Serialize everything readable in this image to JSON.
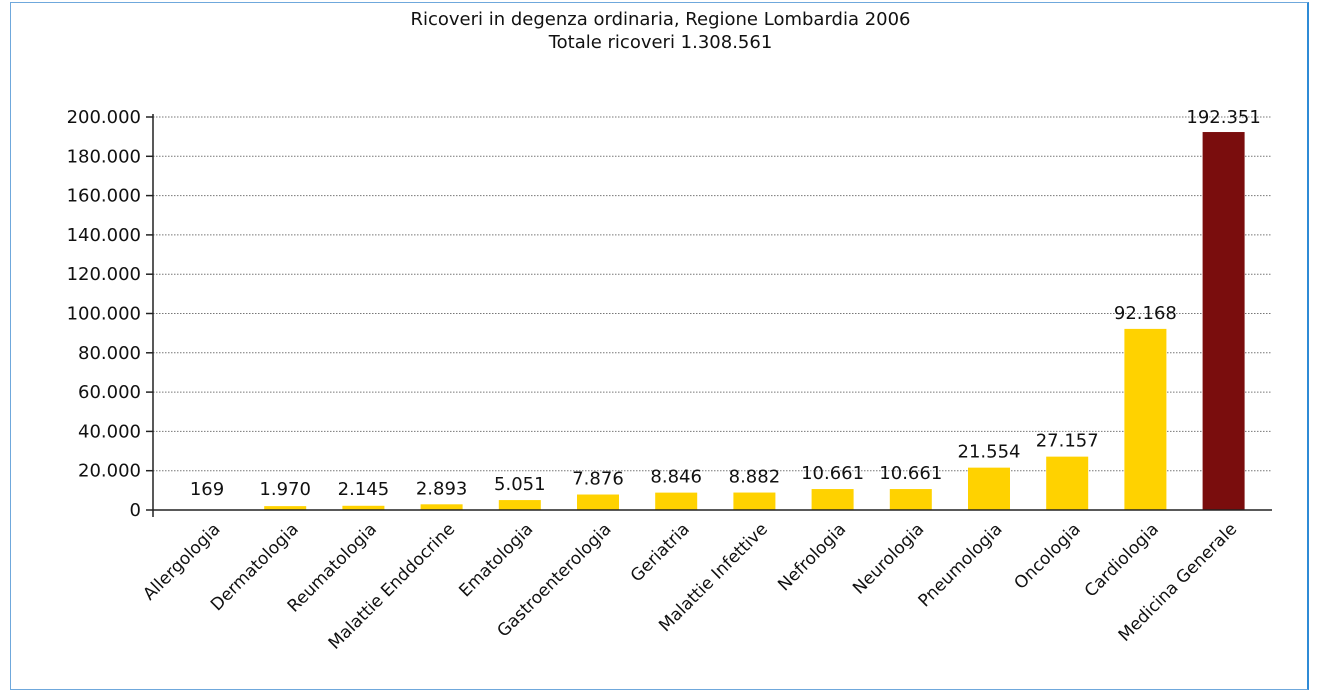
{
  "chart_data": {
    "type": "bar",
    "title": "Ricoveri in degenza ordinaria, Regione Lombardia 2006",
    "subtitle": "Totale ricoveri 1.308.561",
    "xlabel": "",
    "ylabel": "",
    "ylim": [
      0,
      200000
    ],
    "yticks": [
      {
        "value": 0,
        "label": "0"
      },
      {
        "value": 20000,
        "label": "20.000"
      },
      {
        "value": 40000,
        "label": "40.000"
      },
      {
        "value": 60000,
        "label": "60.000"
      },
      {
        "value": 80000,
        "label": "80.000"
      },
      {
        "value": 100000,
        "label": "100.000"
      },
      {
        "value": 120000,
        "label": "120.000"
      },
      {
        "value": 140000,
        "label": "140.000"
      },
      {
        "value": 160000,
        "label": "160.000"
      },
      {
        "value": 180000,
        "label": "180.000"
      },
      {
        "value": 200000,
        "label": "200.000"
      }
    ],
    "grid": true,
    "grid_style": "dotted",
    "legend": "none",
    "categories": [
      "Allergologia",
      "Dermatologia",
      "Reumatologia",
      "Malattie Enddocrine",
      "Ematologia",
      "Gastroenterologia",
      "Geriatria",
      "Malattie Infettive",
      "Nefrologia",
      "Neurologia",
      "Pneumologia",
      "Oncologia",
      "Cardiologia",
      "Medicina Generale"
    ],
    "values": [
      169,
      1970,
      2145,
      2893,
      5051,
      7876,
      8846,
      8882,
      10661,
      10661,
      21554,
      27157,
      92168,
      192351
    ],
    "value_labels": [
      "169",
      "1.970",
      "2.145",
      "2.893",
      "5.051",
      "7.876",
      "8.846",
      "8.882",
      "10.661",
      "10.661",
      "21.554",
      "27.157",
      "92.168",
      "192.351"
    ],
    "colors": {
      "default_bar": "#ffd200",
      "highlight_bar": "#7a0d0d",
      "highlight_category": "Medicina Generale",
      "frame_border": "#2f8bd6",
      "axis": "#222222",
      "grid": "#777777"
    }
  }
}
